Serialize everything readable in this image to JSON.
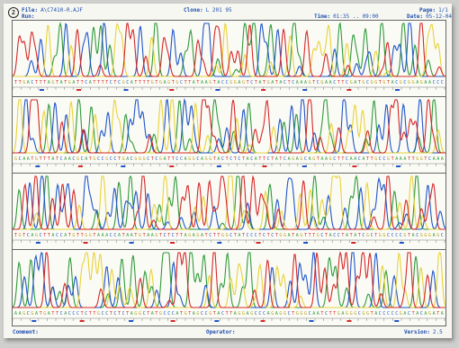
{
  "header": {
    "file_label": "File:",
    "file_value": "A\\C7410-R.AJF",
    "run_label": "Run:",
    "clone_label": "Clone:",
    "clone_value": "L 201 95",
    "page_label": "Page:",
    "page_value": "1/1",
    "time_label": "Time:",
    "time_value": "01:35 .. 09:00",
    "date_label": "Date:",
    "date_value": "05-12-04",
    "logo": "2"
  },
  "footer": {
    "comment_label": "Comment:",
    "operator_label": "Operator:",
    "version_label": "Version:",
    "version_value": "2.5"
  },
  "colors": {
    "A": "#2f9a3a",
    "C": "#1f55c8",
    "G": "#e8d23a",
    "T": "#d42828",
    "sheet": "#f7f7f2"
  },
  "panels": [
    {
      "seed": 11,
      "peaks": 74
    },
    {
      "seed": 37,
      "peaks": 72
    },
    {
      "seed": 59,
      "peaks": 76
    },
    {
      "seed": 83,
      "peaks": 74
    }
  ]
}
